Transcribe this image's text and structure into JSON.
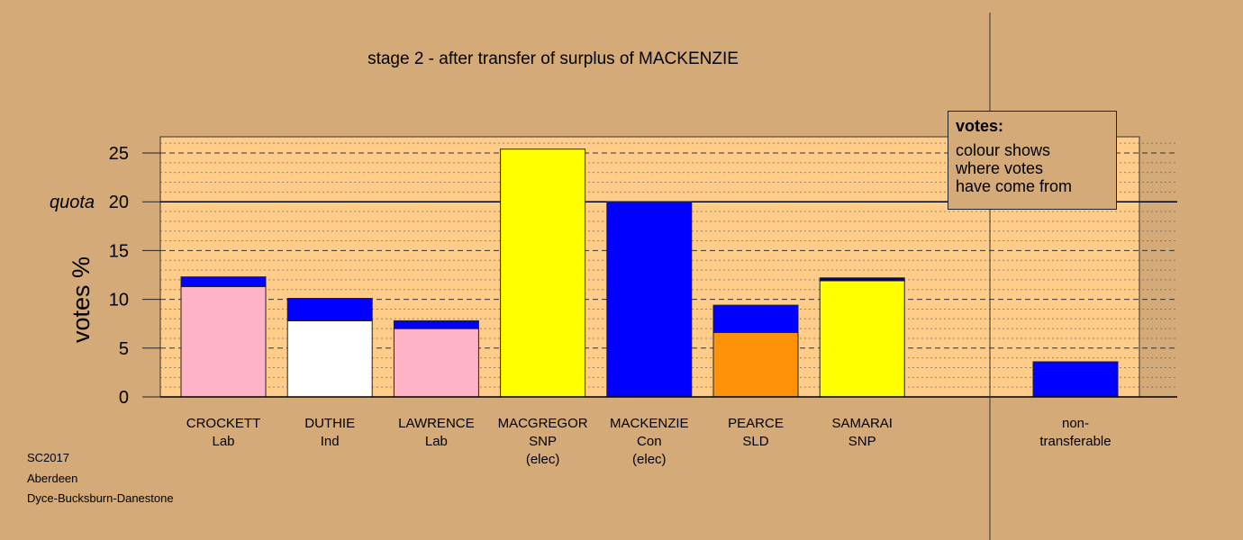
{
  "chart_data": {
    "type": "bar",
    "title": "stage 2 - after transfer of surplus of MACKENZIE",
    "ylabel": "votes %",
    "quota_label": "quota",
    "quota": 20,
    "ylim": [
      0,
      26.5
    ],
    "yticks": [
      "0",
      "5",
      "10",
      "15",
      "20",
      "25"
    ],
    "stacked": true,
    "candidates": [
      {
        "lines": [
          "CROCKETT",
          "Lab"
        ],
        "segments": [
          {
            "value": 11.3,
            "color": "#ffb3c6"
          },
          {
            "value": 1.0,
            "color": "#0000ff"
          }
        ]
      },
      {
        "lines": [
          "DUTHIE",
          "Ind"
        ],
        "segments": [
          {
            "value": 7.8,
            "color": "#ffffff"
          },
          {
            "value": 2.3,
            "color": "#0000ff"
          }
        ]
      },
      {
        "lines": [
          "LAWRENCE",
          "Lab"
        ],
        "segments": [
          {
            "value": 7.0,
            "color": "#ffb3c6"
          },
          {
            "value": 0.8,
            "color": "#0000ff"
          }
        ]
      },
      {
        "lines": [
          "MACGREGOR",
          "SNP",
          "(elec)"
        ],
        "segments": [
          {
            "value": 25.4,
            "color": "#ffff00"
          }
        ]
      },
      {
        "lines": [
          "MACKENZIE",
          "Con",
          "(elec)"
        ],
        "segments": [
          {
            "value": 20.0,
            "color": "#0000ff"
          }
        ]
      },
      {
        "lines": [
          "PEARCE",
          "SLD"
        ],
        "segments": [
          {
            "value": 6.6,
            "color": "#ff9208"
          },
          {
            "value": 2.8,
            "color": "#0000ff"
          }
        ]
      },
      {
        "lines": [
          "SAMARAI",
          "SNP"
        ],
        "segments": [
          {
            "value": 11.9,
            "color": "#ffff00"
          },
          {
            "value": 0.3,
            "color": "#000080"
          }
        ]
      }
    ],
    "nontransferable": {
      "lines": [
        "non-",
        "transferable"
      ],
      "value": 3.6,
      "color": "#0000ff"
    }
  },
  "legend": {
    "heading": "votes:",
    "lines": [
      "colour shows",
      "where votes",
      "have come from"
    ]
  },
  "footer": [
    "SC2017",
    "Aberdeen",
    "Dyce-Bucksburn-Danestone"
  ]
}
